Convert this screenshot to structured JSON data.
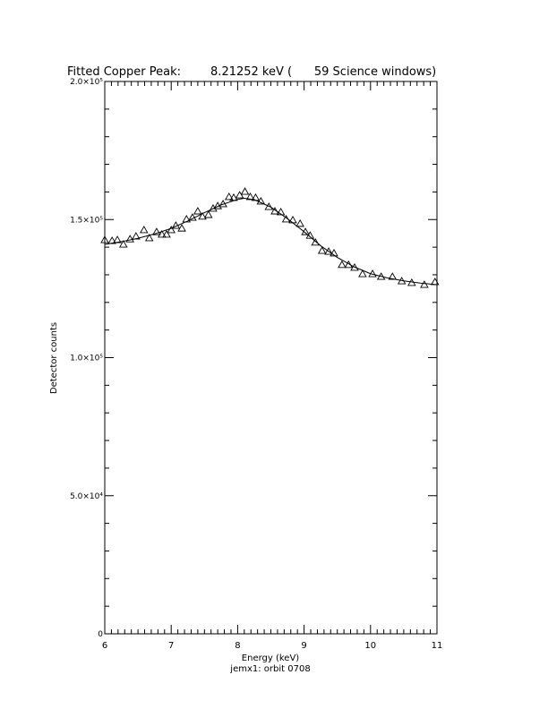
{
  "chart_data": {
    "type": "scatter",
    "title": "Fitted Copper Peak:        8.21252 keV (      59 Science windows)",
    "x_label": "Energy (keV)",
    "y_label": "Detector counts",
    "footnote": "jemx1: orbit 0708",
    "xlim": [
      6,
      11
    ],
    "xticks": [
      6,
      7,
      8,
      9,
      10,
      11
    ],
    "ylim": [
      0,
      200000
    ],
    "yticks": [
      {
        "value": 0,
        "label": "0"
      },
      {
        "value": 50000,
        "label": "5.0×10⁴"
      },
      {
        "value": 100000,
        "label": "1.0×10⁵"
      },
      {
        "value": 150000,
        "label": "1.5×10⁵"
      },
      {
        "value": 200000,
        "label": "2.0×10⁵"
      }
    ],
    "color": "#000000",
    "series": [
      {
        "mode": "markers",
        "marker": "triangle",
        "x": [
          6.0,
          6.11,
          6.19,
          6.28,
          6.38,
          6.47,
          6.59,
          6.67,
          6.78,
          6.86,
          6.93,
          7.0,
          7.07,
          7.16,
          7.23,
          7.32,
          7.4,
          7.47,
          7.56,
          7.63,
          7.7,
          7.78,
          7.87,
          7.94,
          8.03,
          8.11,
          8.19,
          8.27,
          8.35,
          8.47,
          8.56,
          8.65,
          8.73,
          8.83,
          8.94,
          9.02,
          9.09,
          9.17,
          9.27,
          9.37,
          9.45,
          9.57,
          9.67,
          9.76,
          9.88,
          10.03,
          10.16,
          10.33,
          10.47,
          10.62,
          10.81,
          10.97
        ],
        "values": [
          142600,
          142300,
          142600,
          141000,
          142900,
          143900,
          146200,
          143300,
          145500,
          144600,
          144600,
          146200,
          147800,
          146800,
          150100,
          150700,
          153000,
          151100,
          151700,
          154000,
          154900,
          155600,
          158200,
          157900,
          158800,
          160100,
          158200,
          157900,
          156600,
          154600,
          153000,
          152700,
          150100,
          149800,
          148500,
          145500,
          144200,
          141700,
          138700,
          138400,
          137800,
          133600,
          133600,
          132600,
          130300,
          130300,
          129300,
          129300,
          127700,
          127100,
          126400,
          127400
        ]
      },
      {
        "mode": "lines",
        "x": [
          6.0,
          6.25,
          6.5,
          6.75,
          7.0,
          7.25,
          7.5,
          7.75,
          8.0,
          8.1,
          8.25,
          8.5,
          8.75,
          9.0,
          9.25,
          9.5,
          9.75,
          10.0,
          10.25,
          10.5,
          10.75,
          11.0
        ],
        "values": [
          141000,
          142000,
          143200,
          144800,
          146800,
          149500,
          152500,
          155300,
          157300,
          157700,
          157200,
          154500,
          150300,
          145600,
          140500,
          136300,
          132900,
          130400,
          128900,
          127800,
          127000,
          126400
        ]
      }
    ]
  }
}
